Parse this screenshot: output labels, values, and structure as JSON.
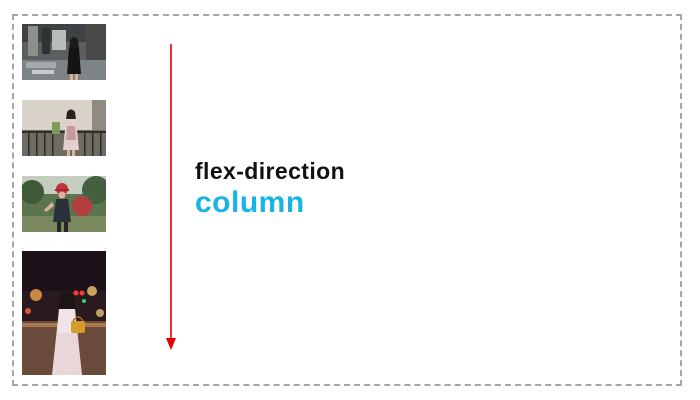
{
  "diagram": {
    "property_name": "flex-direction",
    "property_value": "column",
    "value_color": "#1ab3e6",
    "arrow_color": "#e00000",
    "border_color": "#a6a6a6",
    "flex_items": [
      {
        "name": "photo-1",
        "icon": "photo-icon"
      },
      {
        "name": "photo-2",
        "icon": "photo-icon"
      },
      {
        "name": "photo-3",
        "icon": "photo-icon"
      },
      {
        "name": "photo-4",
        "icon": "photo-icon"
      }
    ]
  }
}
